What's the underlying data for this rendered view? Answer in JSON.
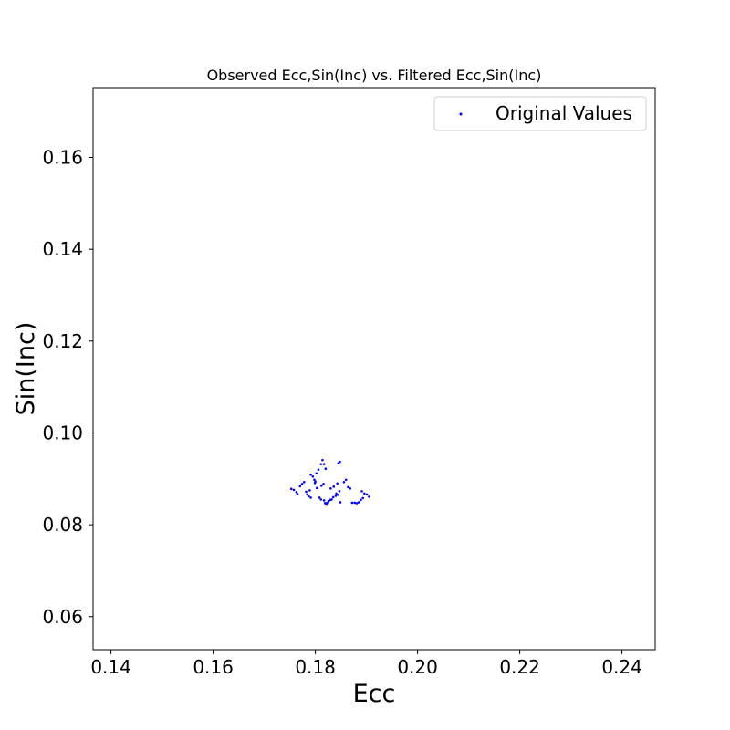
{
  "chart_data": {
    "type": "scatter",
    "title": "Observed Ecc,Sin(Inc) vs. Filtered Ecc,Sin(Inc)",
    "xlabel": "Ecc",
    "ylabel": "Sin(Inc)",
    "xlim": [
      0.1365,
      0.2465
    ],
    "ylim": [
      0.0528,
      0.1752
    ],
    "xticks": [
      0.14,
      0.16,
      0.18,
      0.2,
      0.22,
      0.24
    ],
    "xtick_labels": [
      "0.14",
      "0.16",
      "0.18",
      "0.20",
      "0.22",
      "0.24"
    ],
    "yticks": [
      0.06,
      0.08,
      0.1,
      0.12,
      0.14,
      0.16
    ],
    "ytick_labels": [
      "0.06",
      "0.08",
      "0.10",
      "0.12",
      "0.14",
      "0.16"
    ],
    "grid": false,
    "legend": {
      "placement": "top-right",
      "entries": [
        "Original Values"
      ]
    },
    "series": [
      {
        "name": "Original Values",
        "color": "#0000ff",
        "marker": "dot",
        "points": [
          [
            0.1753,
            0.0878
          ],
          [
            0.1758,
            0.0876
          ],
          [
            0.1763,
            0.0871
          ],
          [
            0.1765,
            0.0867
          ],
          [
            0.177,
            0.0884
          ],
          [
            0.1774,
            0.0889
          ],
          [
            0.1778,
            0.0893
          ],
          [
            0.1782,
            0.0872
          ],
          [
            0.1784,
            0.0866
          ],
          [
            0.1787,
            0.0862
          ],
          [
            0.1791,
            0.0859
          ],
          [
            0.1789,
            0.0875
          ],
          [
            0.1791,
            0.0909
          ],
          [
            0.1795,
            0.0905
          ],
          [
            0.1798,
            0.0898
          ],
          [
            0.1799,
            0.0891
          ],
          [
            0.18,
            0.0894
          ],
          [
            0.1803,
            0.088
          ],
          [
            0.1802,
            0.0912
          ],
          [
            0.1806,
            0.092
          ],
          [
            0.1808,
            0.0859
          ],
          [
            0.1811,
            0.0855
          ],
          [
            0.1812,
            0.0885
          ],
          [
            0.1811,
            0.0932
          ],
          [
            0.1814,
            0.0941
          ],
          [
            0.1817,
            0.0932
          ],
          [
            0.1817,
            0.0853
          ],
          [
            0.1819,
            0.0847
          ],
          [
            0.1822,
            0.0846
          ],
          [
            0.1823,
            0.0848
          ],
          [
            0.182,
            0.0922
          ],
          [
            0.1816,
            0.0889
          ],
          [
            0.1826,
            0.0852
          ],
          [
            0.1829,
            0.0854
          ],
          [
            0.1832,
            0.0855
          ],
          [
            0.1835,
            0.086
          ],
          [
            0.183,
            0.0879
          ],
          [
            0.1836,
            0.0883
          ],
          [
            0.184,
            0.0863
          ],
          [
            0.1841,
            0.0868
          ],
          [
            0.1845,
            0.0865
          ],
          [
            0.1847,
            0.0873
          ],
          [
            0.1849,
            0.0849
          ],
          [
            0.1843,
            0.089
          ],
          [
            0.1848,
            0.0937
          ],
          [
            0.1845,
            0.0934
          ],
          [
            0.1856,
            0.0893
          ],
          [
            0.186,
            0.0898
          ],
          [
            0.1864,
            0.0882
          ],
          [
            0.1868,
            0.0879
          ],
          [
            0.1872,
            0.0848
          ],
          [
            0.1877,
            0.0848
          ],
          [
            0.1881,
            0.0847
          ],
          [
            0.1885,
            0.0849
          ],
          [
            0.1889,
            0.0854
          ],
          [
            0.1893,
            0.0858
          ],
          [
            0.1891,
            0.0873
          ],
          [
            0.1896,
            0.0868
          ],
          [
            0.1901,
            0.0866
          ],
          [
            0.1905,
            0.0861
          ]
        ]
      }
    ]
  }
}
